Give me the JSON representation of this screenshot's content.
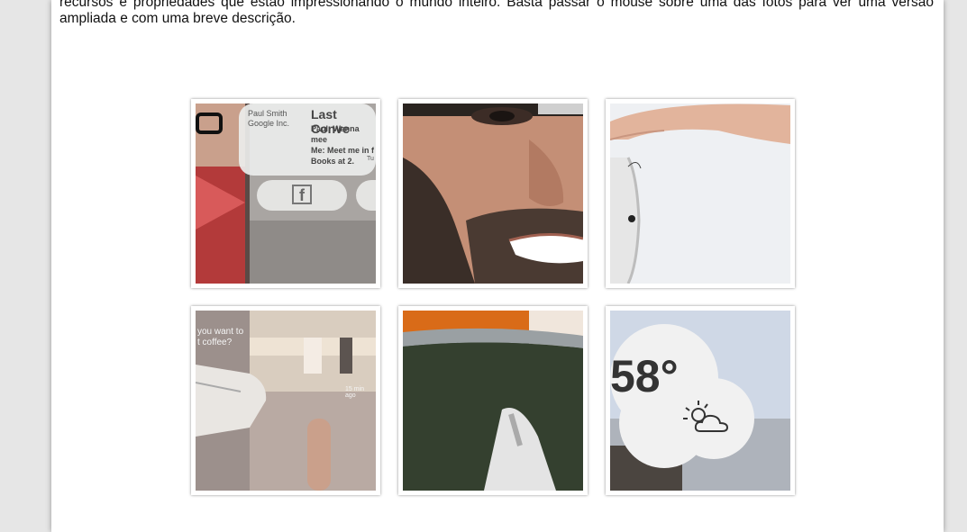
{
  "article": {
    "intro_text": "recursos e propriedades que estão impressionando o mundo inteiro. Basta passar o mouse sobre uma das fotos para ver uma versão ampliada e com uma breve descrição."
  },
  "gallery": {
    "photos": [
      {
        "subject": "man with glasses and HUD message overlay",
        "overlay_name": "Paul Smith",
        "overlay_company": "Google Inc.",
        "overlay_title": "Last Conve",
        "overlay_line1": "Paul: Wanna mee",
        "overlay_line2": "Me: Meet me in f",
        "overlay_line3": "Books at 2.",
        "overlay_time": "Tu",
        "share_icon": "facebook-icon"
      },
      {
        "subject": "close-up of smiling bearded face"
      },
      {
        "subject": "hand touching glass frame side"
      },
      {
        "subject": "hand and glass with coffee prompt overlay",
        "overlay_line1": "you want to",
        "overlay_line2": "t coffee?",
        "overlay_time": "15 min ago"
      },
      {
        "subject": "close-up of glass frame and lens"
      },
      {
        "subject": "weather cloud overlay",
        "temperature": "58°",
        "weather_icon": "partly-sunny-icon"
      }
    ]
  }
}
